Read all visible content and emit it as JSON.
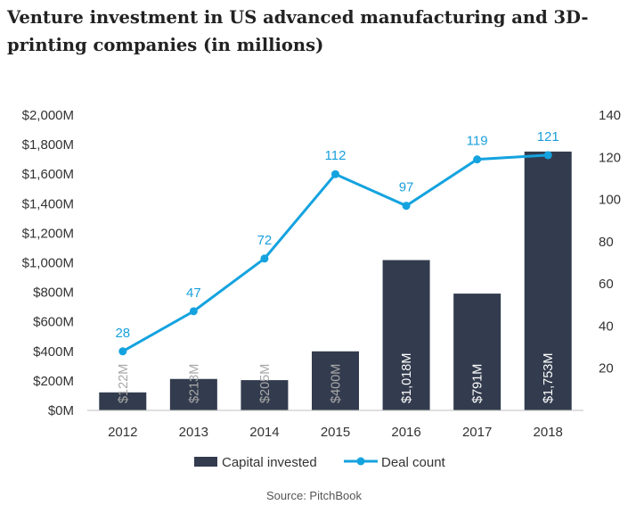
{
  "chart_data": {
    "type": "bar+line",
    "title": "Venture investment in US advanced manufacturing and 3D-printing companies (in millions)",
    "categories": [
      "2012",
      "2013",
      "2014",
      "2015",
      "2016",
      "2017",
      "2018"
    ],
    "series": [
      {
        "name": "Capital invested",
        "type": "bar",
        "axis": "left",
        "values": [
          122,
          213,
          205,
          400,
          1018,
          791,
          1753
        ],
        "labels": [
          "$122M",
          "$213M",
          "$205M",
          "$400M",
          "$1,018M",
          "$791M",
          "$1,753M"
        ],
        "color": "#333c4e"
      },
      {
        "name": "Deal count",
        "type": "line",
        "axis": "right",
        "values": [
          28,
          47,
          72,
          112,
          97,
          119,
          121
        ],
        "color": "#14a3df"
      }
    ],
    "left_axis": {
      "ylim": [
        0,
        2000
      ],
      "ticks": [
        0,
        200,
        400,
        600,
        800,
        1000,
        1200,
        1400,
        1600,
        1800,
        2000
      ],
      "tick_labels": [
        "$0M",
        "$200M",
        "$400M",
        "$600M",
        "$800M",
        "$1,000M",
        "$1,200M",
        "$1,400M",
        "$1,600M",
        "$1,800M",
        "$2,000M"
      ]
    },
    "right_axis": {
      "ylim": [
        0,
        140
      ],
      "ticks": [
        20,
        40,
        60,
        80,
        100,
        120,
        140
      ],
      "tick_labels": [
        "20",
        "40",
        "60",
        "80",
        "100",
        "120",
        "140"
      ]
    },
    "legend": "bottom-center",
    "grid": false,
    "source": "Source: PitchBook"
  }
}
